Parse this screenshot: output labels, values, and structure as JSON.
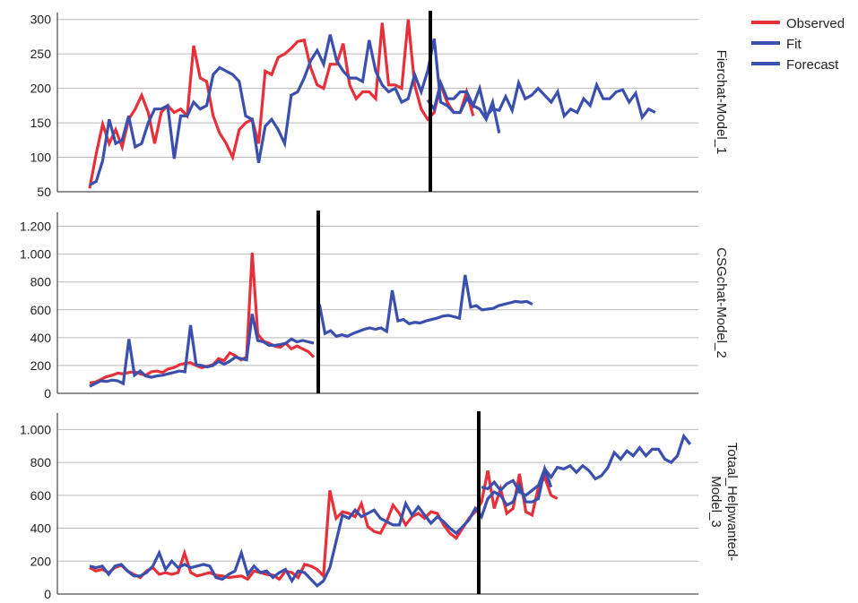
{
  "legend": {
    "position": "top-right",
    "entries": [
      {
        "label": "Observed",
        "color": "#e8303a"
      },
      {
        "label": "Fit",
        "color": "#3a4fae"
      },
      {
        "label": "Forecast",
        "color": "#3a4fae"
      }
    ]
  },
  "colors": {
    "observed": "#e8303a",
    "fit": "#3a4fae",
    "forecast": "#3a4fae",
    "grid": "#b9b9b9",
    "divider": "#000000"
  },
  "chart_data": [
    {
      "type": "line",
      "label": "Fierchat-Model_1",
      "grid": true,
      "ylim": [
        50,
        310
      ],
      "ytick_values": [
        50,
        100,
        150,
        200,
        250,
        300
      ],
      "ytick_labels": [
        "50",
        "100",
        "150",
        "200",
        "250",
        "300"
      ],
      "split_x": 52,
      "series": [
        {
          "name": "Observed",
          "x_start": 0,
          "values": [
            55,
            105,
            148,
            120,
            140,
            115,
            155,
            170,
            190,
            165,
            120,
            165,
            175,
            165,
            170,
            160,
            262,
            215,
            210,
            160,
            135,
            120,
            100,
            140,
            150,
            155,
            120,
            225,
            220,
            245,
            250,
            258,
            268,
            270,
            230,
            205,
            200,
            235,
            235,
            265,
            205,
            185,
            195,
            195,
            185,
            295,
            205,
            205,
            200,
            300,
            205,
            170,
            155,
            165,
            205,
            180,
            165,
            165,
            195,
            160
          ]
        },
        {
          "name": "Fit",
          "x_start": 0,
          "values": [
            60,
            65,
            95,
            155,
            120,
            125,
            160,
            115,
            120,
            150,
            170,
            170,
            175,
            98,
            160,
            160,
            180,
            170,
            175,
            220,
            230,
            225,
            220,
            210,
            160,
            155,
            92,
            145,
            155,
            140,
            120,
            190,
            195,
            215,
            240,
            255,
            235,
            278,
            240,
            225,
            215,
            215,
            210,
            270,
            225,
            205,
            195,
            200,
            180,
            185,
            220,
            195,
            225,
            272,
            180,
            175,
            165,
            165,
            185,
            175,
            170,
            155,
            180,
            135
          ]
        },
        {
          "name": "Forecast",
          "x_start": 52,
          "values": [
            183,
            170,
            208,
            185,
            185,
            195,
            195,
            175,
            200,
            160,
            170,
            168,
            188,
            168,
            208,
            185,
            190,
            200,
            190,
            180,
            195,
            160,
            170,
            165,
            185,
            175,
            205,
            185,
            185,
            195,
            198,
            180,
            193,
            158,
            170,
            165
          ]
        }
      ]
    },
    {
      "type": "line",
      "label": "CSGchat-Model_2",
      "grid": true,
      "ylim": [
        0,
        1300
      ],
      "ytick_values": [
        0,
        200,
        400,
        600,
        800,
        1000,
        1200
      ],
      "ytick_labels": [
        "0",
        "200",
        "400",
        "600",
        "800",
        "1.000",
        "1.200"
      ],
      "split_x": 41,
      "series": [
        {
          "name": "Observed",
          "x_start": 0,
          "values": [
            75,
            80,
            100,
            120,
            130,
            145,
            140,
            150,
            155,
            140,
            130,
            155,
            160,
            150,
            175,
            185,
            205,
            215,
            220,
            200,
            185,
            195,
            205,
            250,
            235,
            290,
            270,
            240,
            260,
            1010,
            425,
            375,
            360,
            340,
            330,
            360,
            320,
            340,
            320,
            300,
            260
          ]
        },
        {
          "name": "Fit",
          "x_start": 0,
          "values": [
            50,
            70,
            90,
            85,
            95,
            90,
            70,
            390,
            130,
            160,
            125,
            115,
            125,
            130,
            140,
            150,
            160,
            155,
            490,
            205,
            200,
            190,
            200,
            230,
            210,
            230,
            260,
            250,
            240,
            570,
            380,
            370,
            345,
            345,
            350,
            360,
            390,
            370,
            380,
            370,
            360
          ]
        },
        {
          "name": "Forecast",
          "x_start": 41,
          "values": [
            640,
            430,
            450,
            410,
            420,
            410,
            430,
            445,
            460,
            470,
            460,
            470,
            445,
            740,
            520,
            530,
            500,
            510,
            505,
            520,
            530,
            540,
            555,
            560,
            550,
            540,
            850,
            620,
            630,
            600,
            605,
            610,
            630,
            640,
            650,
            660,
            655,
            660,
            640
          ]
        }
      ]
    },
    {
      "type": "line",
      "label": "Totaal_Helpwanted-Model_3",
      "grid": true,
      "ylim": [
        0,
        1100
      ],
      "ytick_values": [
        0,
        200,
        400,
        600,
        800,
        1000
      ],
      "ytick_labels": [
        "0",
        "200",
        "400",
        "600",
        "800",
        "1.000"
      ],
      "split_x": 62,
      "series": [
        {
          "name": "Observed",
          "x_start": 0,
          "values": [
            160,
            140,
            150,
            130,
            160,
            175,
            140,
            120,
            100,
            140,
            160,
            120,
            130,
            120,
            130,
            250,
            130,
            110,
            120,
            130,
            115,
            110,
            100,
            105,
            110,
            90,
            140,
            130,
            120,
            115,
            90,
            140,
            130,
            100,
            180,
            170,
            150,
            110,
            630,
            460,
            500,
            490,
            470,
            550,
            410,
            380,
            370,
            440,
            540,
            490,
            420,
            470,
            490,
            460,
            500,
            490,
            420,
            370,
            340,
            400,
            460,
            500,
            560,
            750,
            520,
            640,
            490,
            520,
            730,
            500,
            480,
            650,
            710,
            600,
            580
          ]
        },
        {
          "name": "Fit",
          "x_start": 0,
          "values": [
            170,
            160,
            170,
            120,
            170,
            180,
            140,
            110,
            110,
            130,
            170,
            250,
            150,
            200,
            160,
            180,
            160,
            170,
            180,
            170,
            100,
            90,
            120,
            140,
            250,
            120,
            170,
            130,
            140,
            100,
            130,
            150,
            80,
            140,
            130,
            90,
            50,
            80,
            160,
            320,
            480,
            460,
            510,
            470,
            490,
            510,
            460,
            440,
            420,
            420,
            550,
            480,
            530,
            480,
            430,
            470,
            440,
            400,
            370,
            410,
            450,
            520,
            470,
            580,
            620,
            600,
            540,
            560,
            660,
            560,
            560,
            580,
            760,
            650
          ]
        },
        {
          "name": "Forecast",
          "x_start": 62,
          "values": [
            650,
            640,
            680,
            630,
            670,
            690,
            620,
            600,
            630,
            660,
            760,
            710,
            770,
            760,
            780,
            740,
            780,
            750,
            700,
            720,
            770,
            860,
            820,
            870,
            840,
            890,
            840,
            880,
            880,
            820,
            800,
            840,
            960,
            910
          ]
        }
      ]
    }
  ]
}
